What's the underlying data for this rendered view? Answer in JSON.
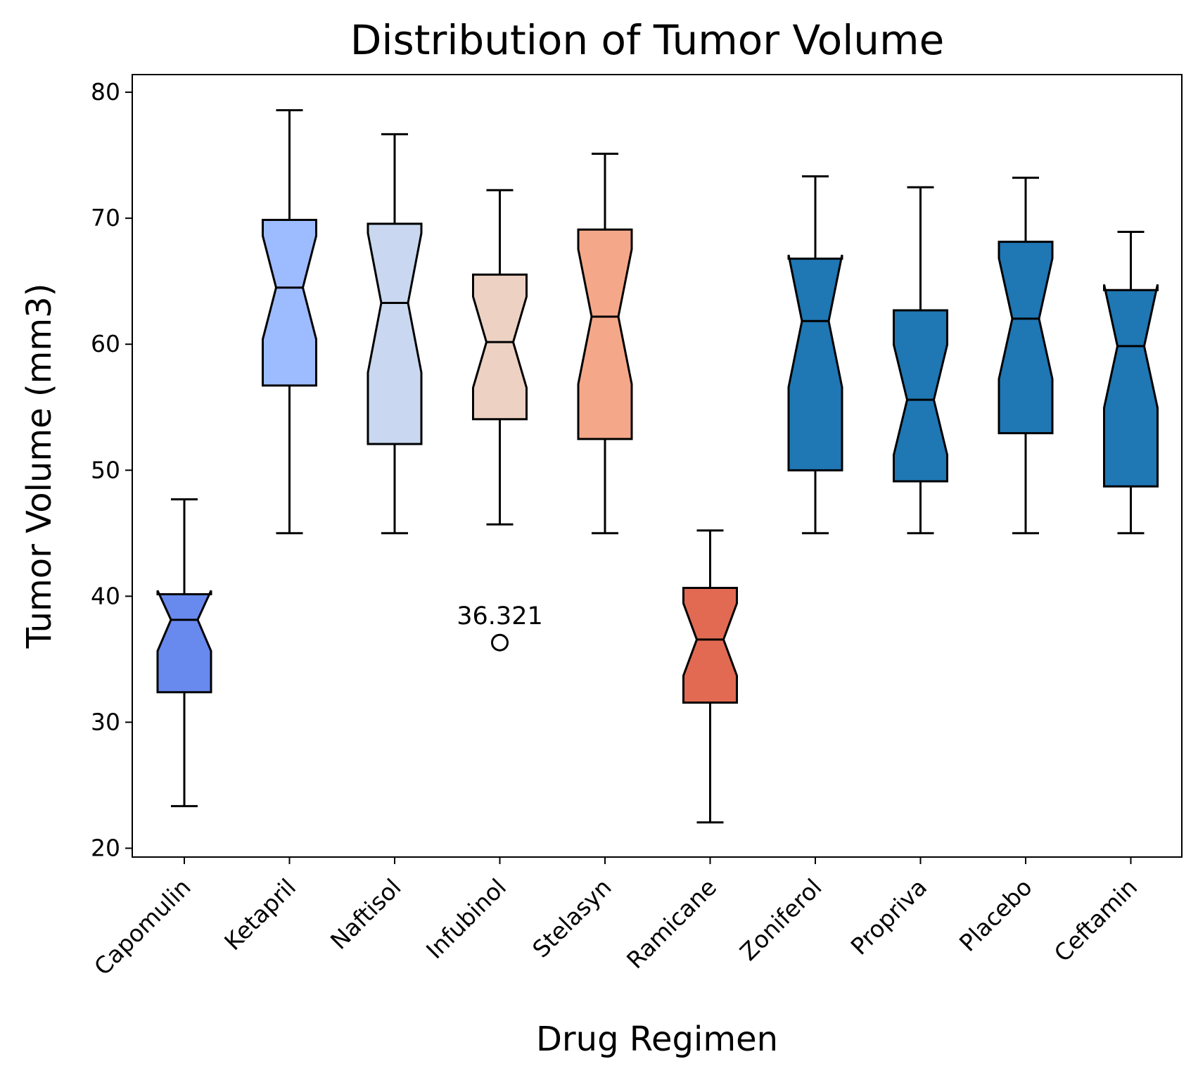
{
  "chart_data": {
    "type": "box",
    "title": "Distribution of Tumor Volume",
    "xlabel": "Drug Regimen",
    "ylabel": "Tumor Volume (mm3)",
    "ylim": [
      19.3,
      81.4
    ],
    "yticks": [
      20,
      30,
      40,
      50,
      60,
      70,
      80
    ],
    "ytick_labels": [
      "20",
      "30",
      "40",
      "50",
      "60",
      "70",
      "80"
    ],
    "notched": true,
    "grid": false,
    "categories": [
      "Capomulin",
      "Ketapril",
      "Naftisol",
      "Infubinol",
      "Stelasyn",
      "Ramicane",
      "Zoniferol",
      "Propriva",
      "Placebo",
      "Ceftamin"
    ],
    "boxes": [
      {
        "name": "Capomulin",
        "whisker_low": 23.34,
        "q1": 32.38,
        "median": 38.13,
        "q3": 40.16,
        "whisker_high": 47.69,
        "notch_low": 35.65,
        "notch_high": 40.45,
        "color": "#6889ee"
      },
      {
        "name": "Ketapril",
        "whisker_low": 45.0,
        "q1": 56.72,
        "median": 64.49,
        "q3": 69.87,
        "whisker_high": 78.57,
        "notch_low": 60.39,
        "notch_high": 68.6,
        "color": "#9dbbff"
      },
      {
        "name": "Naftisol",
        "whisker_low": 45.0,
        "q1": 52.08,
        "median": 63.28,
        "q3": 69.56,
        "whisker_high": 76.67,
        "notch_low": 57.75,
        "notch_high": 68.82,
        "color": "#c9d8f0"
      },
      {
        "name": "Infubinol",
        "whisker_low": 45.7,
        "q1": 54.05,
        "median": 60.17,
        "q3": 65.53,
        "whisker_high": 72.23,
        "notch_low": 56.55,
        "notch_high": 63.78,
        "color": "#edd1c3"
      },
      {
        "name": "Stelasyn",
        "whisker_low": 45.0,
        "q1": 52.48,
        "median": 62.19,
        "q3": 69.1,
        "whisker_high": 75.12,
        "notch_low": 56.84,
        "notch_high": 67.54,
        "color": "#f5a889"
      },
      {
        "name": "Ramicane",
        "whisker_low": 22.05,
        "q1": 31.56,
        "median": 36.56,
        "q3": 40.66,
        "whisker_high": 45.22,
        "notch_low": 33.7,
        "notch_high": 39.43,
        "color": "#e26a53"
      },
      {
        "name": "Zoniferol",
        "whisker_low": 45.0,
        "q1": 49.99,
        "median": 61.84,
        "q3": 66.79,
        "whisker_high": 73.32,
        "notch_low": 56.59,
        "notch_high": 67.09,
        "color": "#1f77b4"
      },
      {
        "name": "Propriva",
        "whisker_low": 45.0,
        "q1": 49.12,
        "median": 55.59,
        "q3": 62.69,
        "whisker_high": 72.46,
        "notch_low": 51.22,
        "notch_high": 59.96,
        "color": "#1f77b4"
      },
      {
        "name": "Placebo",
        "whisker_low": 45.0,
        "q1": 52.94,
        "median": 62.03,
        "q3": 68.13,
        "whisker_high": 73.21,
        "notch_low": 57.24,
        "notch_high": 66.82,
        "color": "#1f77b4"
      },
      {
        "name": "Ceftamin",
        "whisker_low": 45.0,
        "q1": 48.72,
        "median": 59.85,
        "q3": 64.3,
        "whisker_high": 68.92,
        "notch_low": 54.96,
        "notch_high": 64.74,
        "color": "#1f77b4"
      }
    ],
    "outliers": [
      {
        "category": "Infubinol",
        "value": 36.321,
        "label": "36.321"
      }
    ]
  }
}
